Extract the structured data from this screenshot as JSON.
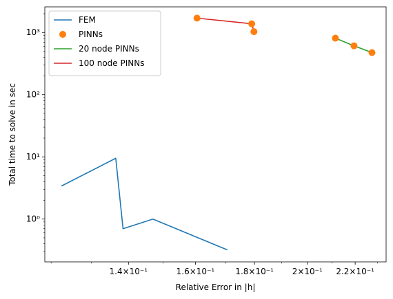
{
  "chart_data": {
    "type": "line",
    "xlabel": "Relative Error in |h|",
    "ylabel": "Total time to solve in sec",
    "x_scale": "log",
    "y_scale": "log",
    "xlim": [
      0.1185,
      0.234
    ],
    "ylim": [
      0.205,
      2580
    ],
    "grid": false,
    "legend_position": "top-left",
    "x_ticks": [
      {
        "value": 0.14,
        "label": "1.4×10⁻¹"
      },
      {
        "value": 0.16,
        "label": "1.6×10⁻¹"
      },
      {
        "value": 0.18,
        "label": "1.8×10⁻¹"
      },
      {
        "value": 0.2,
        "label": "2×10⁻¹"
      },
      {
        "value": 0.22,
        "label": "2.2×10⁻¹"
      }
    ],
    "y_ticks": [
      {
        "value": 1,
        "label": "10⁰"
      },
      {
        "value": 10,
        "label": "10¹"
      },
      {
        "value": 100,
        "label": "10²"
      },
      {
        "value": 1000,
        "label": "10³"
      }
    ],
    "series": [
      {
        "name": "FEM",
        "style": "line",
        "color": "#1f77b4",
        "points": [
          {
            "x": 0.1225,
            "y": 3.4
          },
          {
            "x": 0.1365,
            "y": 9.5
          },
          {
            "x": 0.1385,
            "y": 0.7
          },
          {
            "x": 0.147,
            "y": 1.0
          },
          {
            "x": 0.1705,
            "y": 0.32
          }
        ]
      },
      {
        "name": "PINNs",
        "style": "markers",
        "color": "#ff7f0e",
        "points": [
          {
            "x": 0.1605,
            "y": 1700
          },
          {
            "x": 0.179,
            "y": 1380
          },
          {
            "x": 0.1798,
            "y": 1030
          },
          {
            "x": 0.2115,
            "y": 810
          },
          {
            "x": 0.2195,
            "y": 610
          },
          {
            "x": 0.2275,
            "y": 475
          }
        ]
      },
      {
        "name": "20 node PINNs",
        "style": "line",
        "color": "#2ca02c",
        "points": [
          {
            "x": 0.2115,
            "y": 810
          },
          {
            "x": 0.2195,
            "y": 610
          },
          {
            "x": 0.2275,
            "y": 475
          }
        ]
      },
      {
        "name": "100 node PINNs",
        "style": "line",
        "color": "#d62728",
        "points": [
          {
            "x": 0.1605,
            "y": 1700
          },
          {
            "x": 0.179,
            "y": 1380
          },
          {
            "x": 0.1798,
            "y": 1030
          }
        ]
      }
    ]
  }
}
